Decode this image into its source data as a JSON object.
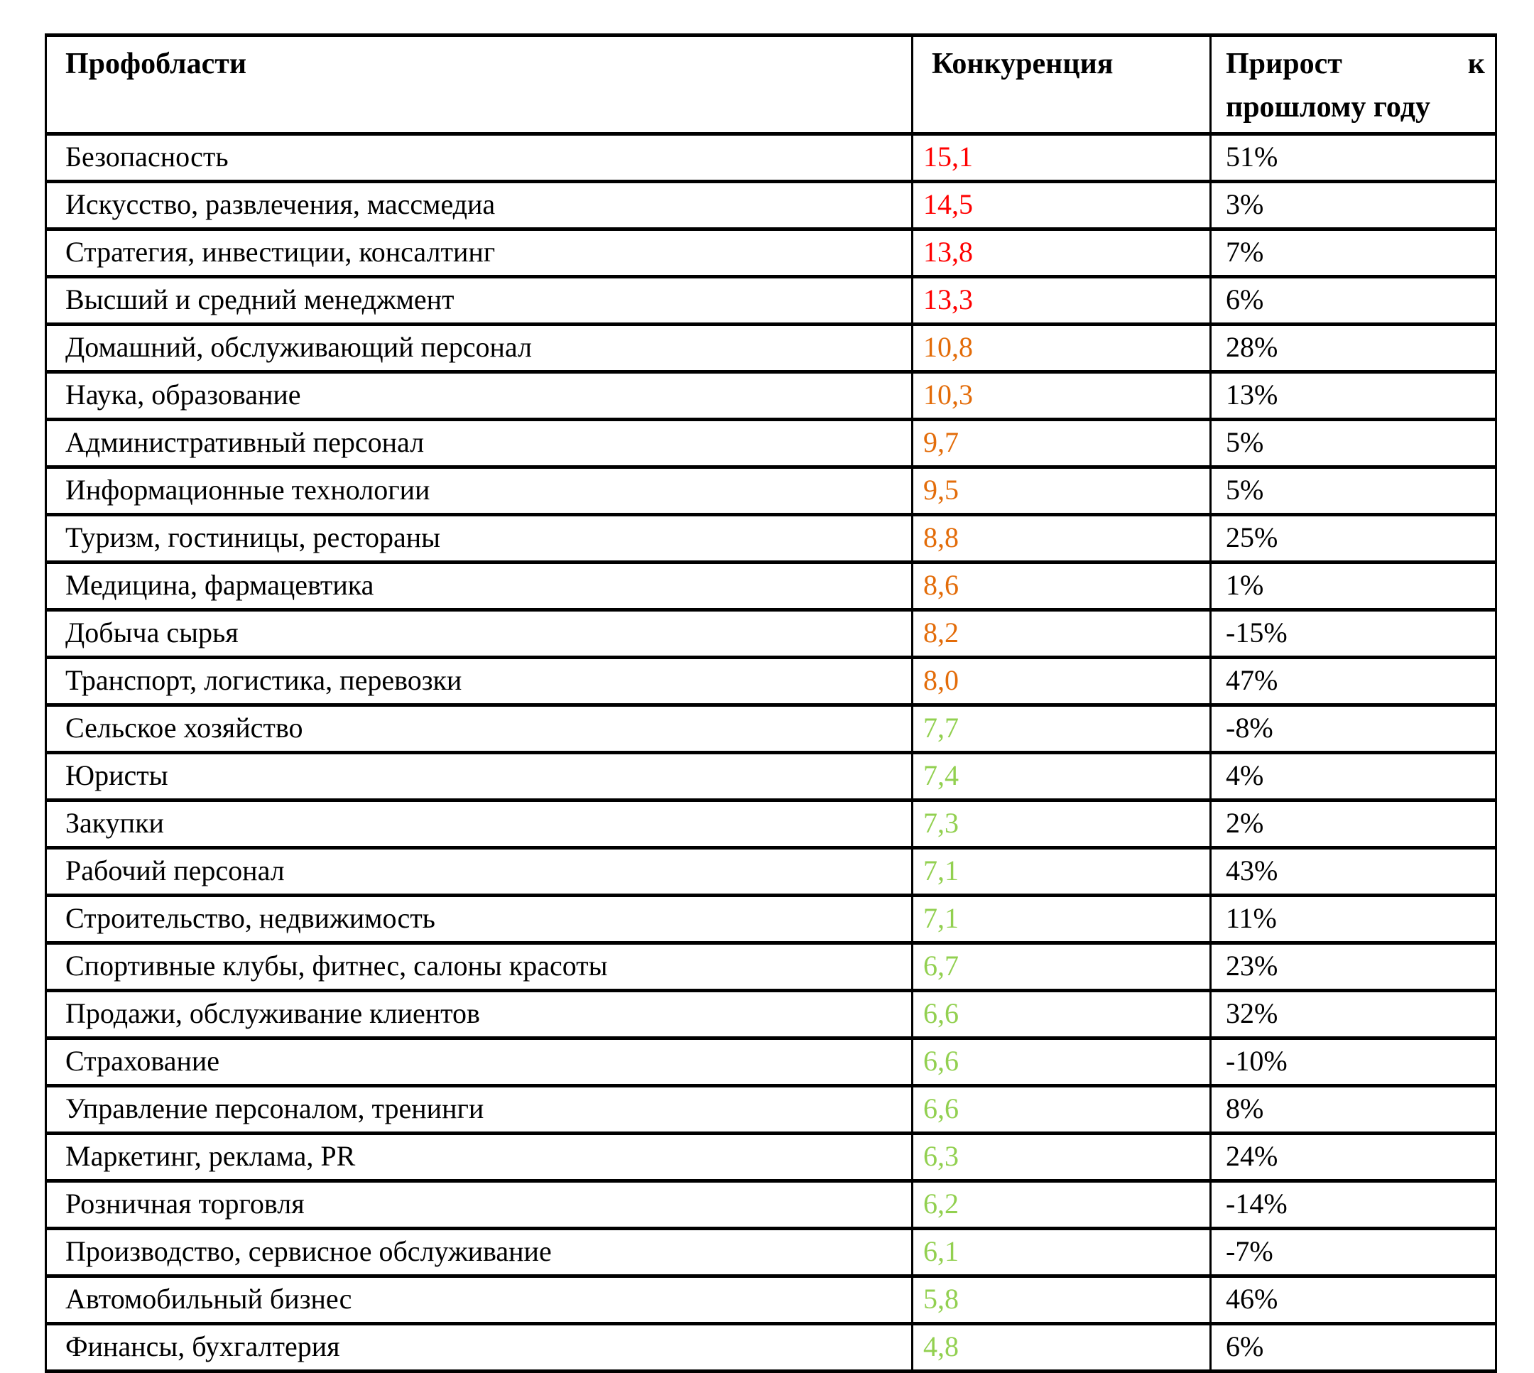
{
  "table": {
    "headers": {
      "area": "Профобласти",
      "competition": "Конкуренция",
      "growth": "Прирост к прошлому году"
    },
    "rows": [
      {
        "area": "Безопасность",
        "competition": "15,1",
        "level": "high",
        "growth": "51%"
      },
      {
        "area": "Искусство, развлечения, массмедиа",
        "competition": "14,5",
        "level": "high",
        "growth": "3%"
      },
      {
        "area": "Стратегия, инвестиции, консалтинг",
        "competition": "13,8",
        "level": "high",
        "growth": "7%"
      },
      {
        "area": "Высший и средний менеджмент",
        "competition": "13,3",
        "level": "high",
        "growth": "6%"
      },
      {
        "area": "Домашний, обслуживающий персонал",
        "competition": "10,8",
        "level": "medium",
        "growth": "28%"
      },
      {
        "area": "Наука, образование",
        "competition": "10,3",
        "level": "medium",
        "growth": "13%"
      },
      {
        "area": "Административный персонал",
        "competition": "9,7",
        "level": "medium",
        "growth": "5%"
      },
      {
        "area": "Информационные технологии",
        "competition": "9,5",
        "level": "medium",
        "growth": "5%"
      },
      {
        "area": "Туризм, гостиницы, рестораны",
        "competition": "8,8",
        "level": "medium",
        "growth": "25%"
      },
      {
        "area": "Медицина, фармацевтика",
        "competition": "8,6",
        "level": "medium",
        "growth": "1%"
      },
      {
        "area": "Добыча сырья",
        "competition": "8,2",
        "level": "medium",
        "growth": "-15%"
      },
      {
        "area": "Транспорт, логистика, перевозки",
        "competition": "8,0",
        "level": "medium",
        "growth": "47%"
      },
      {
        "area": "Сельское хозяйство",
        "competition": "7,7",
        "level": "low",
        "growth": "-8%"
      },
      {
        "area": "Юристы",
        "competition": "7,4",
        "level": "low",
        "growth": "4%"
      },
      {
        "area": "Закупки",
        "competition": "7,3",
        "level": "low",
        "growth": "2%"
      },
      {
        "area": "Рабочий персонал",
        "competition": "7,1",
        "level": "low",
        "growth": "43%"
      },
      {
        "area": "Строительство, недвижимость",
        "competition": "7,1",
        "level": "low",
        "growth": "11%"
      },
      {
        "area": "Спортивные клубы, фитнес, салоны красоты",
        "competition": "6,7",
        "level": "low",
        "growth": "23%"
      },
      {
        "area": "Продажи, обслуживание клиентов",
        "competition": "6,6",
        "level": "low",
        "growth": "32%"
      },
      {
        "area": "Страхование",
        "competition": "6,6",
        "level": "low",
        "growth": "-10%"
      },
      {
        "area": "Управление персоналом, тренинги",
        "competition": "6,6",
        "level": "low",
        "growth": "8%"
      },
      {
        "area": "Маркетинг, реклама, PR",
        "competition": "6,3",
        "level": "low",
        "growth": "24%"
      },
      {
        "area": "Розничная торговля",
        "competition": "6,2",
        "level": "low",
        "growth": "-14%"
      },
      {
        "area": "Производство, сервисное обслуживание",
        "competition": "6,1",
        "level": "low",
        "growth": "-7%"
      },
      {
        "area": "Автомобильный бизнес",
        "competition": "5,8",
        "level": "low",
        "growth": "46%"
      },
      {
        "area": "Финансы, бухгалтерия",
        "competition": "4,8",
        "level": "low",
        "growth": "6%"
      }
    ]
  },
  "colors": {
    "high": "#ff0000",
    "medium": "#e36c09",
    "low": "#92d050",
    "text": "#000000",
    "border": "#000000"
  }
}
